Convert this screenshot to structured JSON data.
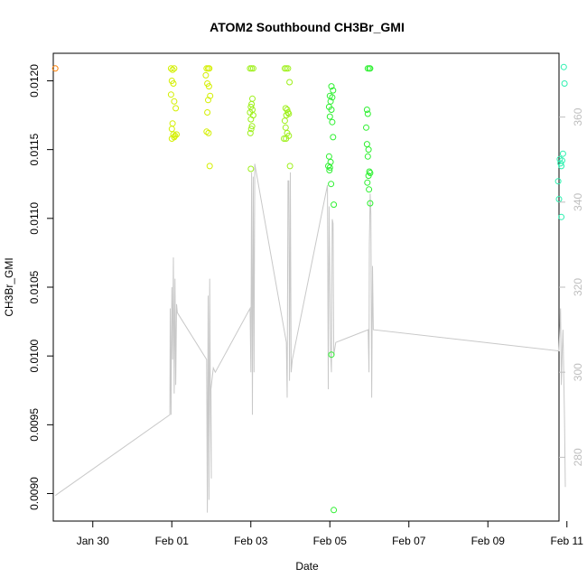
{
  "chart_data": {
    "type": "scatter",
    "title": "ATOM2 Southbound CH3Br_GMI",
    "xlabel": "Date",
    "ylabel": "CH3Br_GMI",
    "y2label": "",
    "xlim_days": [
      0,
      12.8
    ],
    "ylim": [
      0.0088,
      0.0122
    ],
    "y2lim": [
      265,
      375
    ],
    "x_ticks": [
      {
        "label": "Jan 30",
        "day": 1
      },
      {
        "label": "Feb 01",
        "day": 3
      },
      {
        "label": "Feb 03",
        "day": 5
      },
      {
        "label": "Feb 05",
        "day": 7
      },
      {
        "label": "Feb 07",
        "day": 9
      },
      {
        "label": "Feb 09",
        "day": 11
      },
      {
        "label": "Feb 11",
        "day": 13
      }
    ],
    "y_ticks": [
      "0.0090",
      "0.0095",
      "0.0100",
      "0.0105",
      "0.0110",
      "0.0115",
      "0.0120"
    ],
    "y2_ticks": [
      "280",
      "300",
      "320",
      "340",
      "360"
    ],
    "colors": {
      "axis": "#000000",
      "right_axis": "#bebebe",
      "secondary_line": "#c8c8c8"
    },
    "series": [
      {
        "color": "#ff7f00",
        "points": [
          [
            0.05,
            0.01209
          ]
        ]
      },
      {
        "color": "#d4ef00",
        "points": [
          [
            2.98,
            0.01209
          ],
          [
            3.02,
            0.01208
          ],
          [
            3.06,
            0.01209
          ],
          [
            3.0,
            0.012
          ],
          [
            3.04,
            0.01198
          ],
          [
            2.98,
            0.0119
          ],
          [
            3.06,
            0.01185
          ],
          [
            3.1,
            0.0118
          ],
          [
            3.02,
            0.01169
          ],
          [
            3.0,
            0.01165
          ],
          [
            3.04,
            0.01161
          ],
          [
            3.08,
            0.0116
          ],
          [
            3.12,
            0.01161
          ],
          [
            3.0,
            0.01158
          ],
          [
            3.06,
            0.01159
          ],
          [
            3.88,
            0.01209
          ],
          [
            3.92,
            0.01209
          ],
          [
            3.95,
            0.01209
          ],
          [
            3.86,
            0.01204
          ],
          [
            3.9,
            0.01198
          ],
          [
            3.94,
            0.01196
          ],
          [
            3.97,
            0.01189
          ],
          [
            3.92,
            0.01186
          ],
          [
            3.9,
            0.01177
          ],
          [
            3.88,
            0.01163
          ],
          [
            3.93,
            0.01162
          ],
          [
            3.96,
            0.01138
          ]
        ]
      },
      {
        "color": "#9ef01a",
        "points": [
          [
            4.98,
            0.01209
          ],
          [
            5.02,
            0.01209
          ],
          [
            5.06,
            0.01209
          ],
          [
            5.04,
            0.01187
          ],
          [
            5.02,
            0.01183
          ],
          [
            5.0,
            0.01181
          ],
          [
            5.04,
            0.01179
          ],
          [
            4.98,
            0.01177
          ],
          [
            5.06,
            0.01175
          ],
          [
            5.0,
            0.01172
          ],
          [
            5.03,
            0.01167
          ],
          [
            5.01,
            0.01165
          ],
          [
            4.99,
            0.01162
          ],
          [
            5.0,
            0.01136
          ],
          [
            5.86,
            0.01209
          ],
          [
            5.9,
            0.01209
          ],
          [
            5.94,
            0.01209
          ],
          [
            5.98,
            0.01199
          ],
          [
            5.88,
            0.0118
          ],
          [
            5.92,
            0.01179
          ],
          [
            5.94,
            0.01177
          ],
          [
            5.96,
            0.01176
          ],
          [
            5.9,
            0.01175
          ],
          [
            5.86,
            0.01171
          ],
          [
            5.88,
            0.01166
          ],
          [
            5.92,
            0.01162
          ],
          [
            5.96,
            0.0116
          ],
          [
            5.84,
            0.01158
          ],
          [
            5.89,
            0.01158
          ],
          [
            5.99,
            0.01138
          ]
        ]
      },
      {
        "color": "#2ef031",
        "points": [
          [
            7.04,
            0.01196
          ],
          [
            7.08,
            0.01193
          ],
          [
            7.0,
            0.01189
          ],
          [
            7.06,
            0.01188
          ],
          [
            7.02,
            0.01185
          ],
          [
            6.98,
            0.01181
          ],
          [
            7.04,
            0.01179
          ],
          [
            7.0,
            0.01174
          ],
          [
            7.06,
            0.0117
          ],
          [
            7.08,
            0.01159
          ],
          [
            6.98,
            0.01145
          ],
          [
            7.02,
            0.01141
          ],
          [
            6.96,
            0.01138
          ],
          [
            7.0,
            0.01137
          ],
          [
            6.99,
            0.01135
          ],
          [
            7.03,
            0.01125
          ],
          [
            7.1,
            0.0111
          ],
          [
            7.04,
            0.01001
          ],
          [
            7.1,
            0.00888
          ],
          [
            7.96,
            0.01209
          ],
          [
            8.0,
            0.01209
          ],
          [
            8.02,
            0.01209
          ],
          [
            7.94,
            0.01179
          ],
          [
            7.96,
            0.01176
          ],
          [
            7.92,
            0.01166
          ],
          [
            7.94,
            0.01154
          ],
          [
            7.98,
            0.0115
          ],
          [
            7.96,
            0.01145
          ],
          [
            8.0,
            0.01134
          ],
          [
            8.02,
            0.01133
          ],
          [
            7.98,
            0.01131
          ],
          [
            7.95,
            0.01126
          ],
          [
            7.99,
            0.01121
          ],
          [
            8.02,
            0.01111
          ]
        ]
      },
      {
        "color": "#2ef0b0",
        "points": [
          [
            12.92,
            0.0121
          ],
          [
            12.94,
            0.01198
          ],
          [
            12.9,
            0.01147
          ],
          [
            12.82,
            0.01143
          ],
          [
            12.88,
            0.01142
          ],
          [
            12.84,
            0.0114
          ],
          [
            12.86,
            0.01138
          ],
          [
            12.78,
            0.01127
          ],
          [
            12.8,
            0.01114
          ],
          [
            12.86,
            0.01101
          ]
        ]
      }
    ],
    "secondary_series": {
      "color": "#c8c8c8",
      "points": [
        [
          0.05,
          271
        ],
        [
          2.95,
          290
        ],
        [
          2.96,
          315
        ],
        [
          2.98,
          290
        ],
        [
          3.0,
          320
        ],
        [
          3.02,
          303
        ],
        [
          3.04,
          327
        ],
        [
          3.06,
          295
        ],
        [
          3.08,
          322
        ],
        [
          3.1,
          297
        ],
        [
          3.12,
          316
        ],
        [
          3.14,
          314
        ],
        [
          3.88,
          303
        ],
        [
          3.9,
          267
        ],
        [
          3.92,
          318
        ],
        [
          3.94,
          270
        ],
        [
          3.96,
          322
        ],
        [
          3.98,
          290
        ],
        [
          4.0,
          275
        ],
        [
          3.99,
          296
        ],
        [
          4.05,
          301
        ],
        [
          4.1,
          300
        ],
        [
          4.98,
          315
        ],
        [
          5.0,
          300
        ],
        [
          5.02,
          347
        ],
        [
          5.04,
          290
        ],
        [
          5.06,
          346
        ],
        [
          5.08,
          300
        ],
        [
          5.1,
          349
        ],
        [
          5.9,
          307
        ],
        [
          5.92,
          294
        ],
        [
          5.94,
          345
        ],
        [
          5.96,
          345
        ],
        [
          5.98,
          298
        ],
        [
          6.0,
          347
        ],
        [
          6.02,
          300
        ],
        [
          6.05,
          303
        ],
        [
          6.94,
          344
        ],
        [
          6.96,
          296
        ],
        [
          6.98,
          339
        ],
        [
          7.0,
          322
        ],
        [
          7.02,
          305
        ],
        [
          7.04,
          300
        ],
        [
          7.06,
          336
        ],
        [
          7.08,
          335
        ],
        [
          7.1,
          304
        ],
        [
          7.15,
          307
        ],
        [
          7.97,
          310
        ],
        [
          7.99,
          300
        ],
        [
          8.0,
          330
        ],
        [
          8.02,
          342
        ],
        [
          8.04,
          337
        ],
        [
          8.06,
          294
        ],
        [
          8.08,
          325
        ],
        [
          8.1,
          310
        ],
        [
          12.8,
          305
        ],
        [
          12.84,
          315
        ],
        [
          12.86,
          297
        ],
        [
          12.88,
          305
        ],
        [
          12.9,
          310
        ],
        [
          12.94,
          289
        ],
        [
          12.96,
          273
        ]
      ]
    }
  }
}
